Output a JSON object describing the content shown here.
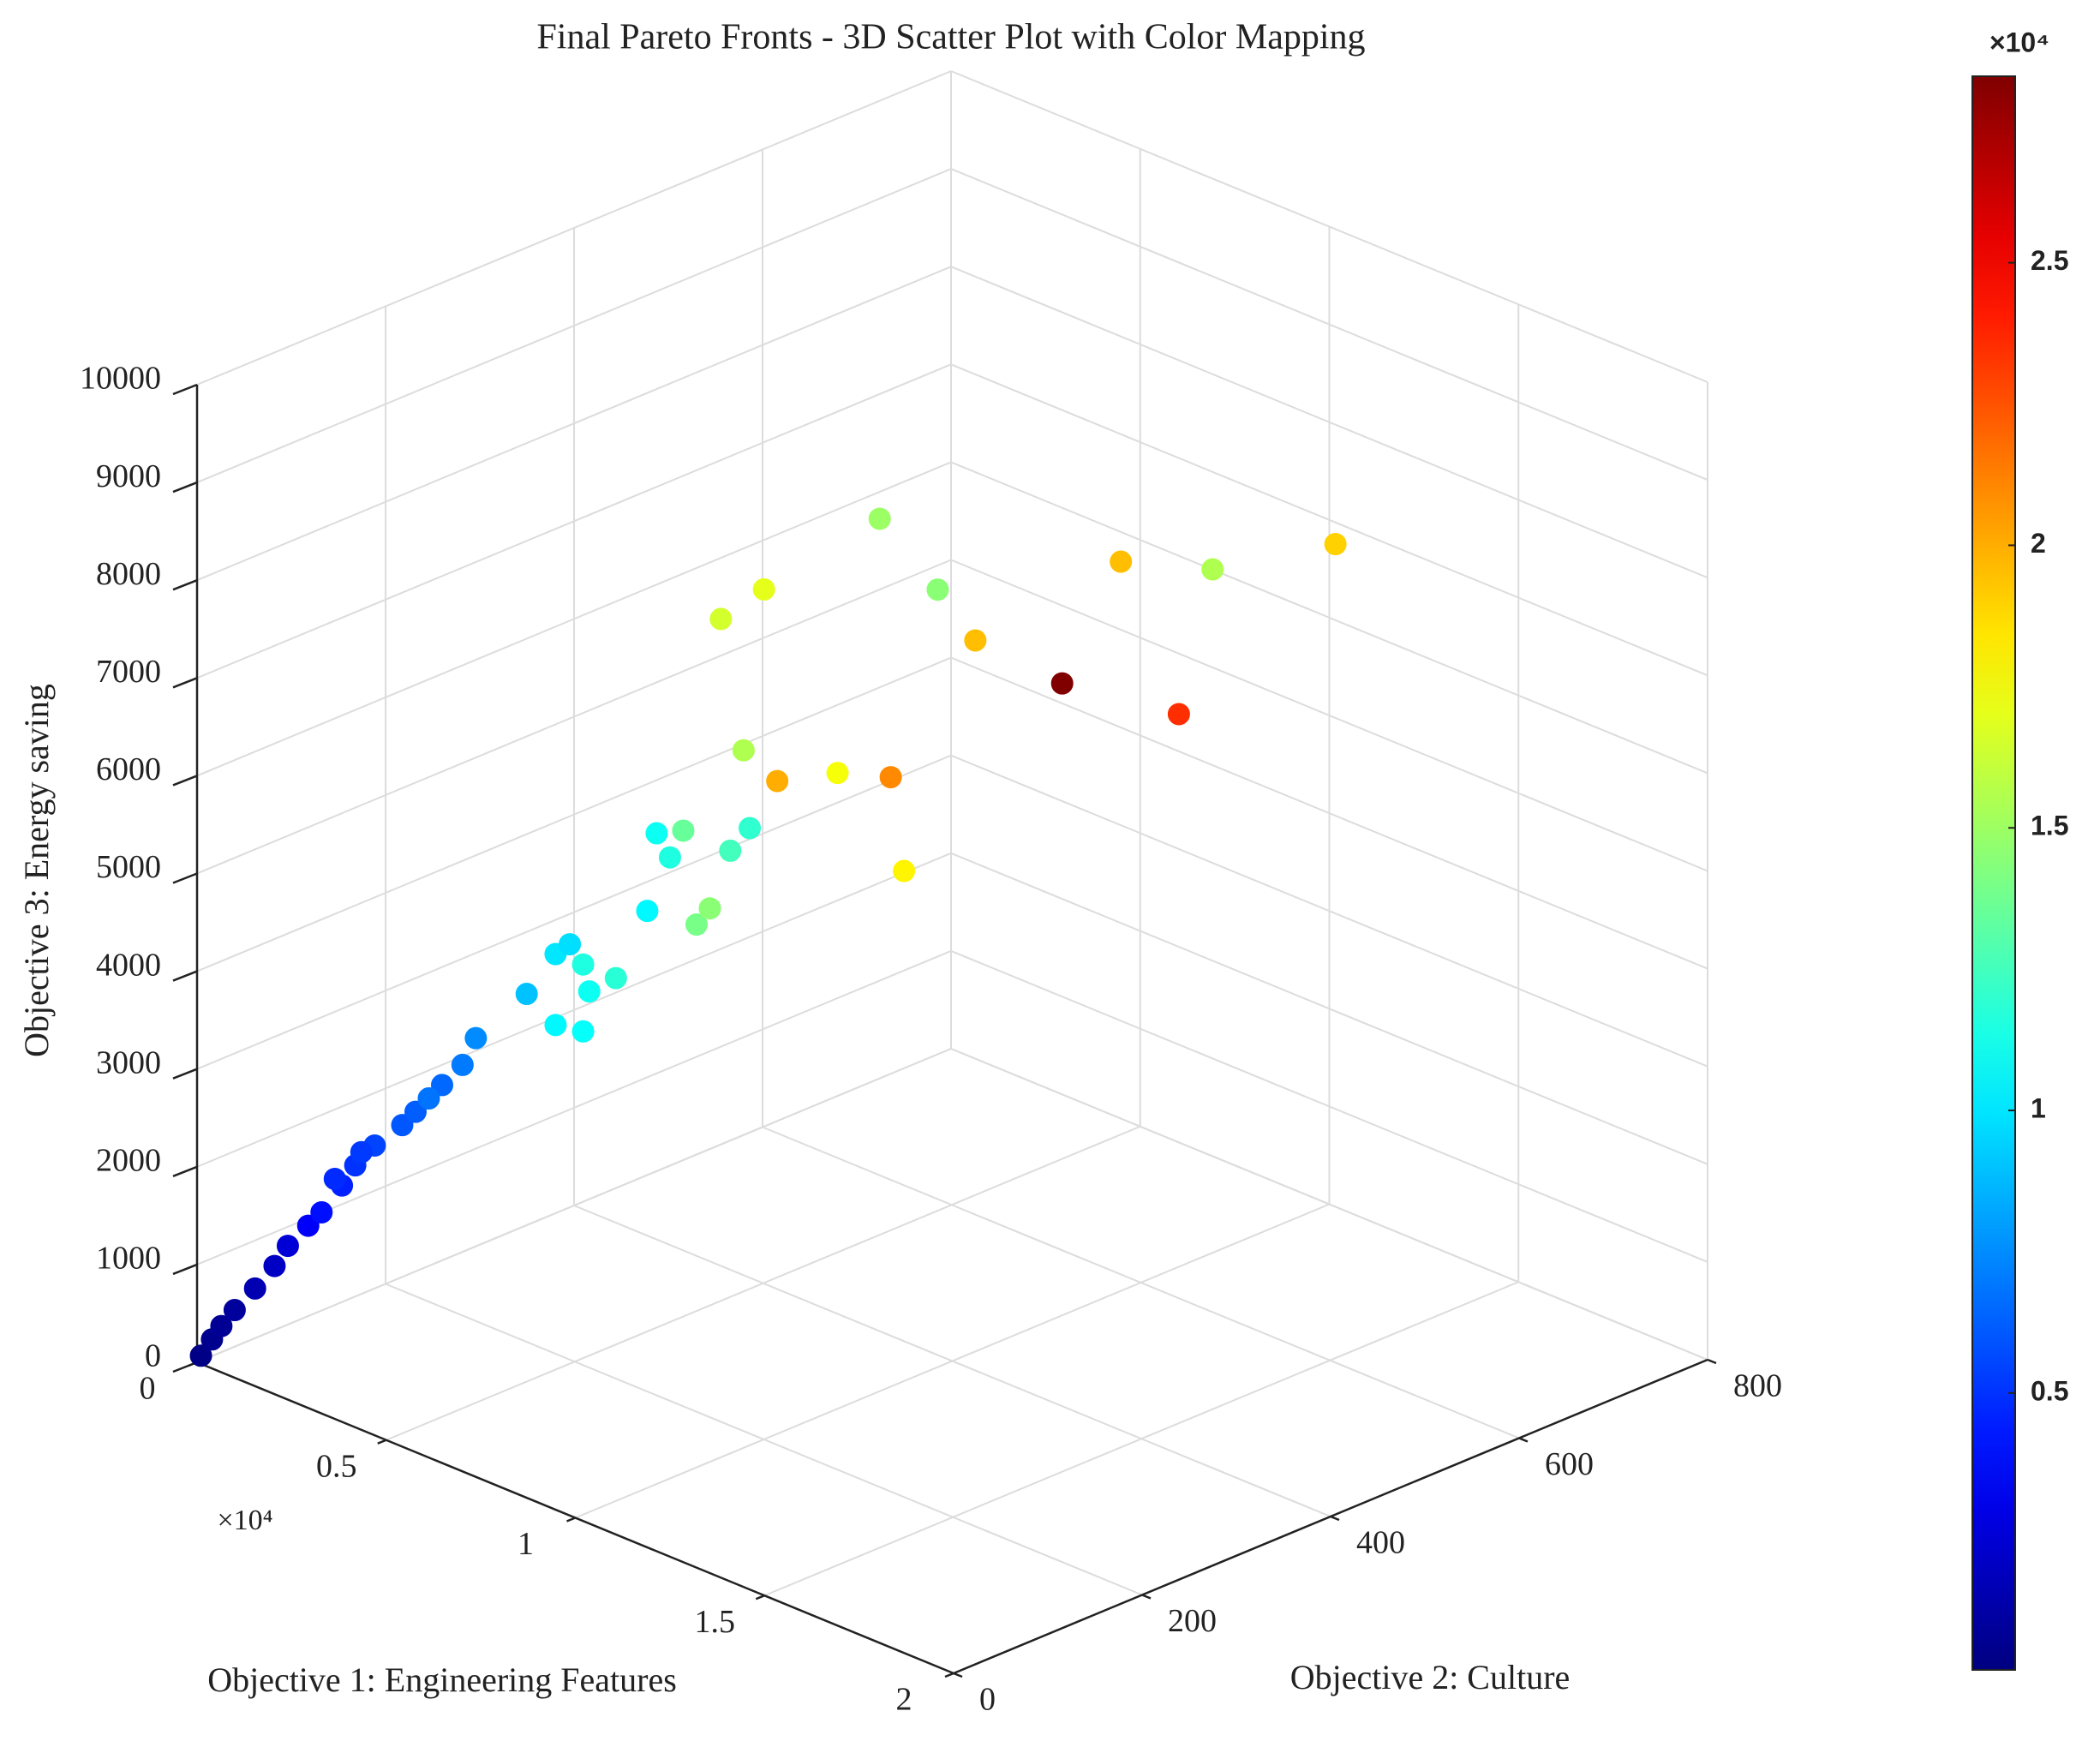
{
  "chart_data": {
    "type": "scatter3d",
    "title": "Final Pareto Fronts - 3D Scatter Plot with Color Mapping",
    "xlabel": "Objective 1: Engineering Features",
    "ylabel": "Objective 2: Culture",
    "zlabel": "Objective 3: Energy saving",
    "x_exponent": "×10⁴",
    "xlim": [
      0,
      20000
    ],
    "xticks": [
      0,
      {
        "value": 5000,
        "label": "0.5"
      },
      {
        "value": 10000,
        "label": "1"
      },
      {
        "value": 15000,
        "label": "1.5"
      },
      {
        "value": 20000,
        "label": "2"
      }
    ],
    "ylim": [
      0,
      800
    ],
    "yticks": [
      0,
      200,
      400,
      600,
      800
    ],
    "zlim": [
      0,
      10000
    ],
    "zticks": [
      0,
      1000,
      2000,
      3000,
      4000,
      5000,
      6000,
      7000,
      8000,
      9000,
      10000
    ],
    "grid": true,
    "colormap": "jet",
    "x": [
      53,
      195,
      319,
      496,
      761,
      1027,
      1204,
      1469,
      1646,
      1912,
      2089,
      2354,
      2708,
      2885,
      3239,
      3505,
      3682,
      1823,
      2177,
      3062,
      4354,
      4744,
      4921,
      5098,
      5186,
      5540,
      4744,
      5098,
      5947,
      6071,
      6248,
      6425,
      6602,
      6779,
      7045,
      7310,
      7222,
      7664,
      8461,
      9169,
      9346,
      6921,
      7487,
      9027,
      9788,
      10284,
      11434,
      12974,
      12213,
      13417,
      15045
    ],
    "y": [
      2,
      8,
      13,
      20,
      31,
      41,
      48,
      59,
      66,
      77,
      84,
      94,
      109,
      116,
      130,
      141,
      148,
      73,
      87,
      123,
      175,
      190,
      198,
      205,
      208,
      222,
      190,
      205,
      239,
      244,
      251,
      258,
      265,
      272,
      283,
      293,
      290,
      308,
      340,
      368,
      375,
      278,
      301,
      362,
      393,
      413,
      459,
      521,
      490,
      539,
      604
    ],
    "z": [
      68,
      233,
      369,
      533,
      752,
      984,
      1190,
      1394,
      1531,
      1804,
      2010,
      2215,
      2420,
      2556,
      2830,
      3034,
      3308,
      1873,
      2147,
      2693,
      3759,
      4169,
      4265,
      4058,
      3785,
      3921,
      3443,
      3374,
      4605,
      5399,
      5152,
      5426,
      4466,
      4631,
      5219,
      5452,
      6246,
      5930,
      6011,
      5968,
      5009,
      7590,
      7890,
      8613,
      7885,
      7364,
      6923,
      6605,
      8168,
      8084,
      8341
    ],
    "color_values": [
      300,
      500,
      700,
      900,
      1500,
      2000,
      2500,
      3500,
      4000,
      4500,
      5000,
      5500,
      6000,
      6200,
      6500,
      7000,
      7500,
      4800,
      5200,
      6800,
      9000,
      10000,
      9800,
      11500,
      11000,
      11800,
      10500,
      10800,
      10500,
      11000,
      11500,
      13500,
      14000,
      14500,
      12500,
      12000,
      15500,
      20000,
      17500,
      21000,
      18000,
      16500,
      17000,
      15000,
      14500,
      19500,
      28300,
      23500,
      19500,
      15500,
      19000
    ],
    "colorbar": {
      "exponent": "×10⁴",
      "lim": [
        100,
        28300
      ],
      "ticks": [
        {
          "value": 5000,
          "label": "0.5"
        },
        {
          "value": 10000,
          "label": "1"
        },
        {
          "value": 15000,
          "label": "1.5"
        },
        {
          "value": 20000,
          "label": "2"
        },
        {
          "value": 25000,
          "label": "2.5"
        }
      ]
    }
  }
}
